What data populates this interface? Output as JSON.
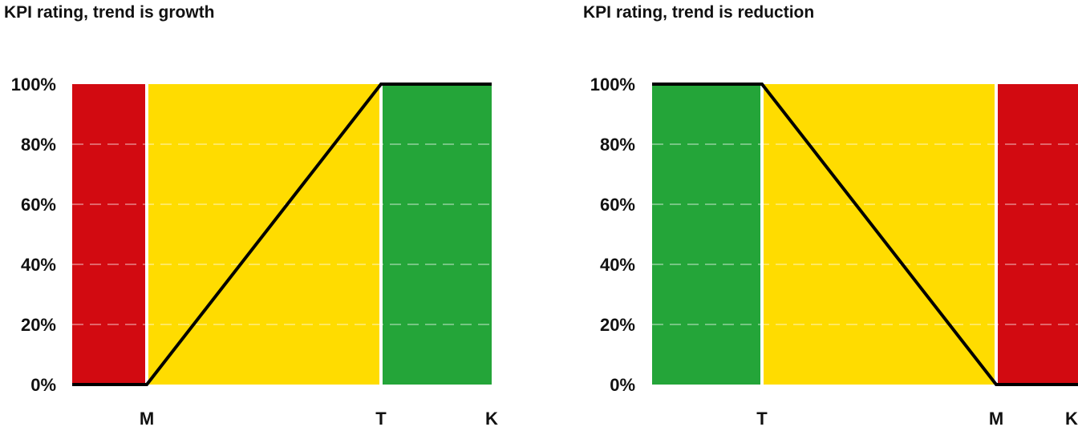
{
  "chart_data": [
    {
      "type": "area",
      "title": "KPI rating, trend is growth",
      "x_ticks": [
        "M",
        "T",
        "K"
      ],
      "y_ticks": [
        "0%",
        "20%",
        "40%",
        "60%",
        "80%",
        "100%"
      ],
      "ylim": [
        0,
        100
      ],
      "grid": true,
      "zones": [
        {
          "from": "start",
          "to": "M",
          "color": "#d20a11"
        },
        {
          "from": "M",
          "to": "T",
          "color": "#ffdc00"
        },
        {
          "from": "T",
          "to": "K",
          "color": "#24a539"
        }
      ],
      "line": {
        "color": "#000000",
        "points": [
          {
            "x": "start",
            "y": 0
          },
          {
            "x": "M",
            "y": 0
          },
          {
            "x": "T",
            "y": 100
          },
          {
            "x": "K",
            "y": 100
          }
        ]
      }
    },
    {
      "type": "area",
      "title": "KPI rating, trend is reduction",
      "x_ticks": [
        "T",
        "M",
        "K"
      ],
      "y_ticks": [
        "0%",
        "20%",
        "40%",
        "60%",
        "80%",
        "100%"
      ],
      "ylim": [
        0,
        100
      ],
      "grid": true,
      "zones": [
        {
          "from": "start",
          "to": "T",
          "color": "#24a539"
        },
        {
          "from": "T",
          "to": "M",
          "color": "#ffdc00"
        },
        {
          "from": "M",
          "to": "K",
          "color": "#d20a11"
        }
      ],
      "line": {
        "color": "#000000",
        "points": [
          {
            "x": "start",
            "y": 100
          },
          {
            "x": "T",
            "y": 100
          },
          {
            "x": "M",
            "y": 0
          },
          {
            "x": "K",
            "y": 0
          }
        ]
      }
    }
  ]
}
